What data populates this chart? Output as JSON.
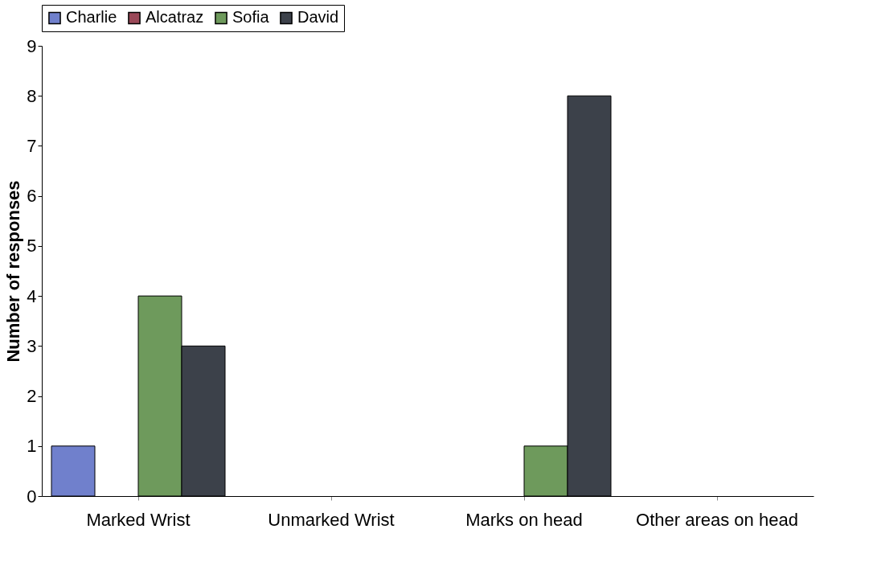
{
  "chart_data": {
    "type": "bar",
    "ylabel": "Number of responses",
    "categories": [
      "Marked Wrist",
      "Unmarked Wrist",
      "Marks on head",
      "Other areas on head"
    ],
    "series": [
      {
        "name": "Charlie",
        "color": "#7080cc",
        "values": [
          1,
          0,
          0,
          0
        ]
      },
      {
        "name": "Alcatraz",
        "color": "#9a4858",
        "values": [
          0,
          0,
          0,
          0
        ]
      },
      {
        "name": "Sofia",
        "color": "#6e9a5c",
        "values": [
          4,
          0,
          1,
          0
        ]
      },
      {
        "name": "David",
        "color": "#3c414a",
        "values": [
          3,
          0,
          8,
          0
        ]
      }
    ],
    "ylim": [
      0,
      9
    ],
    "yticks": [
      0,
      1,
      2,
      3,
      4,
      5,
      6,
      7,
      8,
      9
    ],
    "grid": false,
    "legend": "top"
  }
}
